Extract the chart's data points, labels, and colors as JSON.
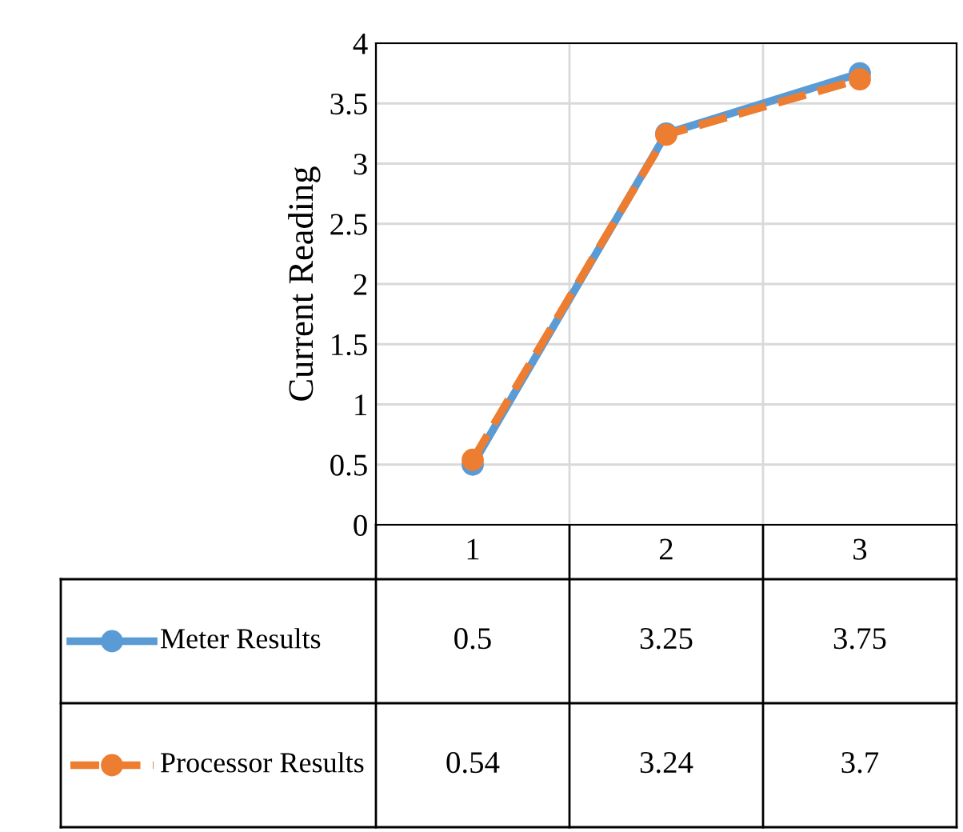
{
  "chart_data": {
    "type": "line",
    "ylabel": "Current Reading",
    "categories": [
      "1",
      "2",
      "3"
    ],
    "series": [
      {
        "name": "Meter Results",
        "color": "#5b9bd5",
        "values": [
          0.5,
          3.25,
          3.75
        ],
        "line_style": "solid"
      },
      {
        "name": "Processor Results",
        "color": "#ed7d31",
        "values": [
          0.54,
          3.24,
          3.7
        ],
        "line_style": "dashed"
      }
    ],
    "ylim": [
      0,
      4
    ],
    "yticks": [
      0,
      0.5,
      1,
      1.5,
      2,
      2.5,
      3,
      3.5,
      4
    ],
    "grid": true,
    "marker": "circle",
    "legend": "bottom",
    "data_labels": true
  }
}
